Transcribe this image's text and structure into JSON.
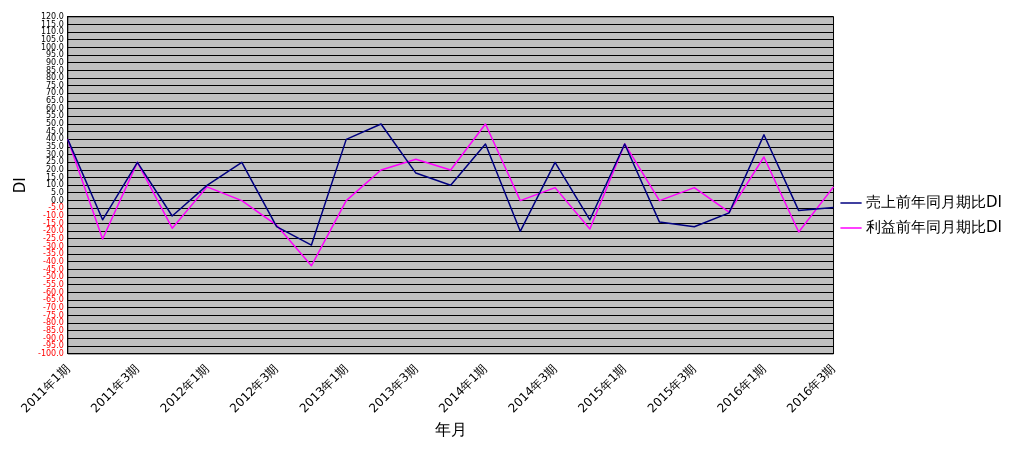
{
  "chart_data": {
    "type": "line",
    "xlabel": "年月",
    "ylabel": "DI",
    "categories": [
      "2011年1期",
      null,
      "2011年3期",
      null,
      "2012年1期",
      null,
      "2012年3期",
      null,
      "2013年1期",
      null,
      "2013年3期",
      null,
      "2014年1期",
      null,
      "2014年3期",
      null,
      "2015年1期",
      null,
      "2015年3期",
      null,
      "2016年1期",
      null,
      "2016年3期"
    ],
    "series": [
      {
        "name": "売上前年同月期比DI",
        "color": "#000080",
        "values": [
          40,
          -12.5,
          25,
          -10,
          10,
          25,
          -17,
          -29,
          40,
          50,
          18,
          10,
          37,
          -20,
          25,
          -12.5,
          37,
          -14,
          -17,
          -8,
          43,
          -6.5,
          -4.5
        ]
      },
      {
        "name": "利益前年同月期比DI",
        "color": "#ff00ff",
        "values": [
          40,
          -25,
          25,
          -18,
          9,
          0,
          -16,
          -42.5,
          0,
          20,
          27,
          20,
          50,
          0,
          8.5,
          -18.5,
          37,
          0,
          8.5,
          -7.5,
          28.5,
          -20.5,
          9
        ]
      }
    ],
    "ylim": [
      -100,
      120
    ],
    "yticks": [
      {
        "value": -100,
        "label": "-100.0"
      },
      {
        "value": -95,
        "label": "-95.0"
      },
      {
        "value": -90,
        "label": "-90.0"
      },
      {
        "value": -85,
        "label": "-85.0"
      },
      {
        "value": -80,
        "label": "-80.0"
      },
      {
        "value": -75,
        "label": "-75.0"
      },
      {
        "value": -70,
        "label": "-70.0"
      },
      {
        "value": -65,
        "label": "-65.0"
      },
      {
        "value": -60,
        "label": "-60.0"
      },
      {
        "value": -55,
        "label": "-55.0"
      },
      {
        "value": -50,
        "label": "-50.0"
      },
      {
        "value": -45,
        "label": "-45.0"
      },
      {
        "value": -40,
        "label": "-40.0"
      },
      {
        "value": -35,
        "label": "-35.0"
      },
      {
        "value": -30,
        "label": "-30.0"
      },
      {
        "value": -25,
        "label": "-25.0"
      },
      {
        "value": -20,
        "label": "-20.0"
      },
      {
        "value": -15,
        "label": "-15.0"
      },
      {
        "value": -10,
        "label": "-10.0"
      },
      {
        "value": -5,
        "label": "-5.0"
      },
      {
        "value": 0,
        "label": "0.0"
      },
      {
        "value": 5,
        "label": "5.0"
      },
      {
        "value": 10,
        "label": "10.0"
      },
      {
        "value": 15,
        "label": "15.0"
      },
      {
        "value": 20,
        "label": "20.0"
      },
      {
        "value": 25,
        "label": "25.0"
      },
      {
        "value": 30,
        "label": "30.0"
      },
      {
        "value": 35,
        "label": "35.0"
      },
      {
        "value": 40,
        "label": "40.0"
      },
      {
        "value": 45,
        "label": "45.0"
      },
      {
        "value": 50,
        "label": "50.0"
      },
      {
        "value": 55,
        "label": "55.0"
      },
      {
        "value": 60,
        "label": "60.0"
      },
      {
        "value": 65,
        "label": "65.0"
      },
      {
        "value": 70,
        "label": "70.0"
      },
      {
        "value": 75,
        "label": "75.0"
      },
      {
        "value": 80,
        "label": "80.0"
      },
      {
        "value": 85,
        "label": "85.0"
      },
      {
        "value": 90,
        "label": "90.0"
      },
      {
        "value": 95,
        "label": "95.0"
      },
      {
        "value": 100,
        "label": "100.0"
      },
      {
        "value": 105,
        "label": "105.0"
      },
      {
        "value": 110,
        "label": "110.0"
      },
      {
        "value": 115,
        "label": "115.0"
      },
      {
        "value": 120,
        "label": "120.0"
      }
    ],
    "grid": "y",
    "legend": "right",
    "marker": "none",
    "line_style": "solid"
  }
}
